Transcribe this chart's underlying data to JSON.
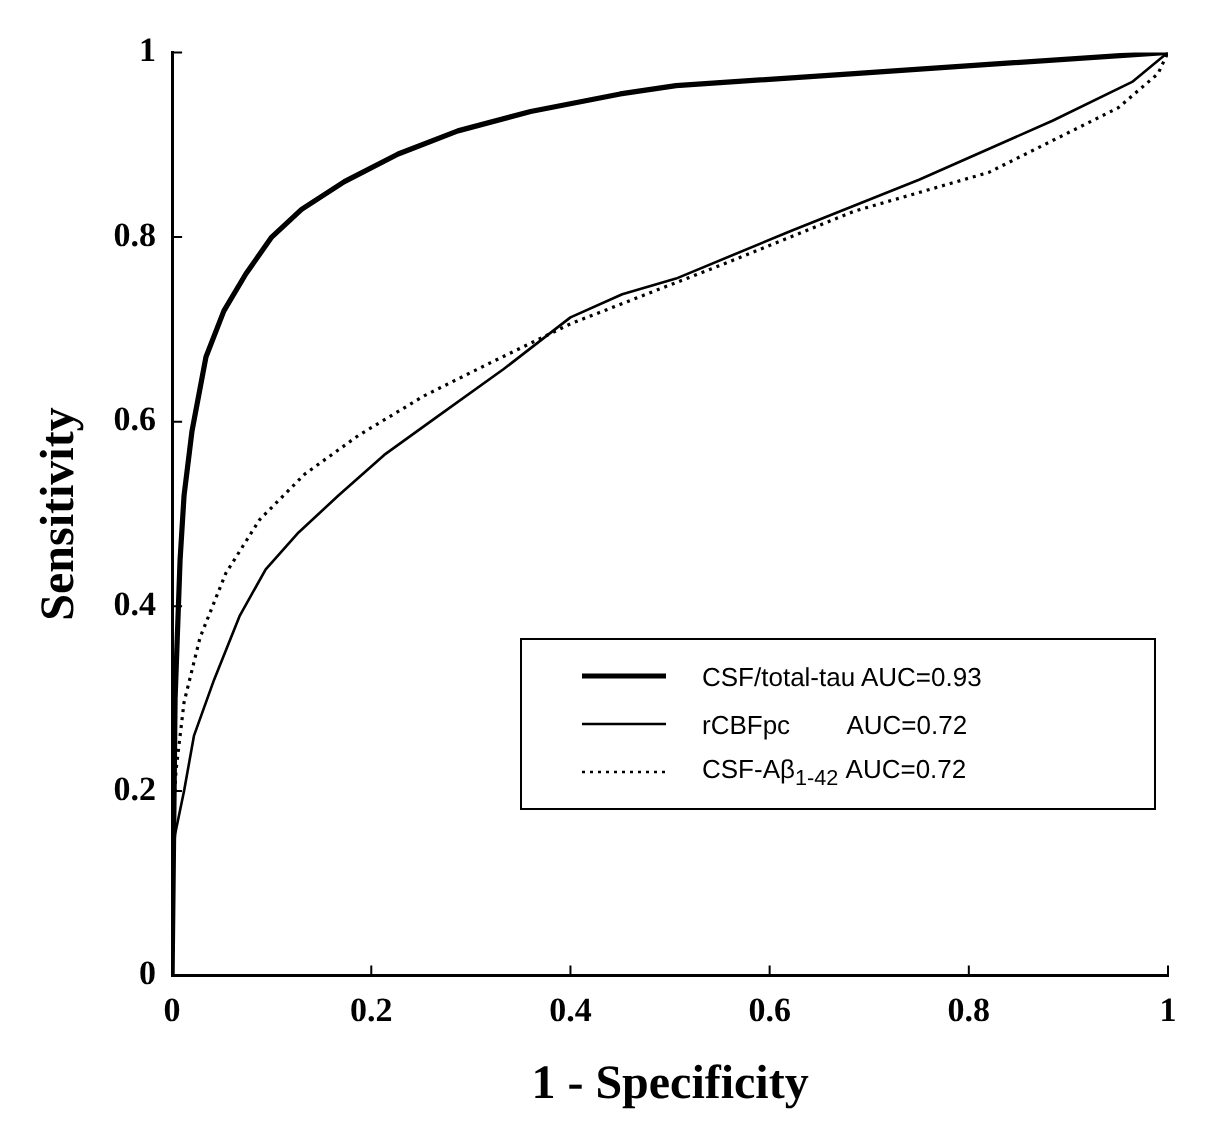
{
  "chart_data": {
    "type": "line",
    "xlabel": "1 - Specificity",
    "ylabel": "Sensitivity",
    "xlim": [
      0,
      1
    ],
    "ylim": [
      0,
      1
    ],
    "xticks": [
      0,
      0.2,
      0.4,
      0.6,
      0.8,
      1
    ],
    "yticks": [
      0,
      0.2,
      0.4,
      0.6,
      0.8,
      1
    ],
    "grid": false,
    "legend": "bottom right",
    "marker": "none",
    "series": [
      {
        "name": "CSF/total-tau AUC=0.93",
        "color": "#000000",
        "line_style": "solid",
        "x": [
          0,
          0.003,
          0.008,
          0.012,
          0.02,
          0.034,
          0.052,
          0.074,
          0.1,
          0.13,
          0.173,
          0.227,
          0.287,
          0.36,
          0.45,
          0.506,
          0.685,
          0.82,
          1
        ],
        "values": [
          0,
          0.3,
          0.45,
          0.52,
          0.59,
          0.67,
          0.72,
          0.76,
          0.8,
          0.83,
          0.86,
          0.89,
          0.915,
          0.936,
          0.955,
          0.964,
          0.977,
          0.987,
          1
        ]
      },
      {
        "name": "rCBFpc        AUC=0.72",
        "color": "#000000",
        "line_style": "solid",
        "x": [
          0,
          0,
          0.003,
          0.012,
          0.022,
          0.042,
          0.068,
          0.094,
          0.127,
          0.167,
          0.213,
          0.267,
          0.333,
          0.4,
          0.452,
          0.506,
          0.62,
          0.75,
          0.884,
          0.964,
          1
        ],
        "values": [
          0,
          0.12,
          0.153,
          0.2,
          0.26,
          0.32,
          0.39,
          0.44,
          0.48,
          0.52,
          0.564,
          0.606,
          0.657,
          0.713,
          0.738,
          0.755,
          0.806,
          0.862,
          0.926,
          0.968,
          1
        ]
      },
      {
        "name": "CSF-Aβ$_{1-42}$ AUC=0.72",
        "color": "#000000",
        "line_style": "dotted",
        "x": [
          0,
          0,
          0.004,
          0.012,
          0.028,
          0.054,
          0.088,
          0.133,
          0.187,
          0.253,
          0.32,
          0.4,
          0.552,
          0.685,
          0.82,
          0.95,
          0.99,
          1
        ],
        "values": [
          0,
          0.15,
          0.223,
          0.296,
          0.366,
          0.436,
          0.494,
          0.543,
          0.585,
          0.628,
          0.664,
          0.706,
          0.77,
          0.828,
          0.87,
          0.94,
          0.977,
          1
        ]
      }
    ]
  }
}
